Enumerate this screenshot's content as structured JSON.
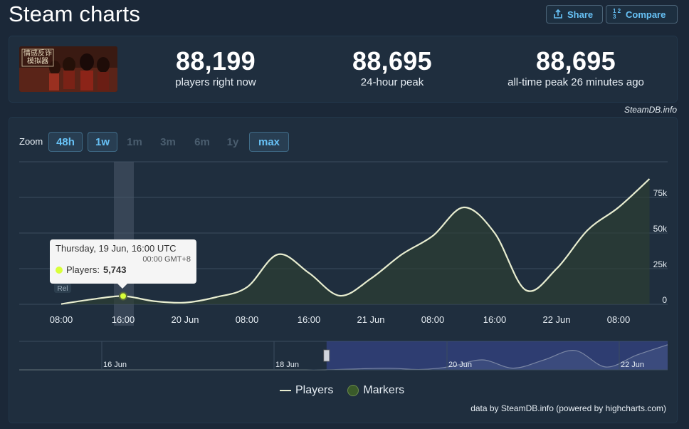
{
  "page": {
    "title": "Steam charts"
  },
  "header": {
    "share_label": "Share",
    "compare_label": "Compare",
    "compare_icon_text": "1 2 3"
  },
  "game": {
    "cover_text": "情感反诈 模拟器"
  },
  "stats": [
    {
      "value": "88,199",
      "label": "players right now"
    },
    {
      "value": "88,695",
      "label": "24-hour peak"
    },
    {
      "value": "88,695",
      "label": "all-time peak 26 minutes ago"
    }
  ],
  "credit": "SteamDB.info",
  "zoom": {
    "label": "Zoom",
    "options": [
      {
        "label": "48h",
        "active": true
      },
      {
        "label": "1w",
        "active": true
      },
      {
        "label": "1m",
        "active": false
      },
      {
        "label": "3m",
        "active": false
      },
      {
        "label": "6m",
        "active": false
      },
      {
        "label": "1y",
        "active": false
      },
      {
        "label": "max",
        "active": true
      }
    ]
  },
  "tooltip": {
    "date": "Thursday, 19 Jun, 16:00 UTC",
    "tz": "00:00 GMT+8",
    "label": "Players:",
    "value": "5,743"
  },
  "marker_label": "Rel",
  "legend": {
    "players": "Players",
    "markers": "Markers"
  },
  "powered_by": "data by SteamDB.info (powered by highcharts.com)",
  "colors": {
    "line": "#e8edd0",
    "accent": "#67c1f5",
    "tooltip_dot": "#d9ff3a",
    "navigator_mask": "#3a4a9a"
  },
  "chart_data": {
    "type": "area",
    "x": [
      "19 Jun 08:00",
      "19 Jun 12:00",
      "19 Jun 16:00",
      "19 Jun 20:00",
      "20 Jun 00:00",
      "20 Jun 04:00",
      "20 Jun 08:00",
      "20 Jun 12:00",
      "20 Jun 16:00",
      "20 Jun 20:00",
      "21 Jun 00:00",
      "21 Jun 04:00",
      "21 Jun 08:00",
      "21 Jun 12:00",
      "21 Jun 16:00",
      "21 Jun 20:00",
      "22 Jun 00:00",
      "22 Jun 04:00",
      "22 Jun 08:00",
      "22 Jun 12:00"
    ],
    "series": [
      {
        "name": "Players",
        "values": [
          200,
          3500,
          5743,
          2200,
          1200,
          5000,
          12000,
          35000,
          22000,
          6000,
          18000,
          35000,
          48000,
          68000,
          50000,
          10000,
          25000,
          52000,
          68000,
          88000
        ]
      }
    ],
    "yticks": [
      "0",
      "25k",
      "50k",
      "75k"
    ],
    "ytick_values": [
      0,
      25000,
      50000,
      75000
    ],
    "ylim": [
      0,
      100000
    ],
    "xticks": [
      "08:00",
      "16:00",
      "20 Jun",
      "08:00",
      "16:00",
      "21 Jun",
      "08:00",
      "16:00",
      "22 Jun",
      "08:00"
    ],
    "navigator_ticks": [
      "16 Jun",
      "18 Jun",
      "20 Jun",
      "22 Jun"
    ],
    "navigator_values": [
      0,
      0,
      0,
      0,
      0,
      0,
      0,
      0,
      0,
      0,
      200,
      3500,
      5743,
      1200,
      12000,
      35000,
      6000,
      35000,
      68000,
      10000,
      52000,
      88000
    ],
    "selected_index": 2,
    "grid": true
  }
}
